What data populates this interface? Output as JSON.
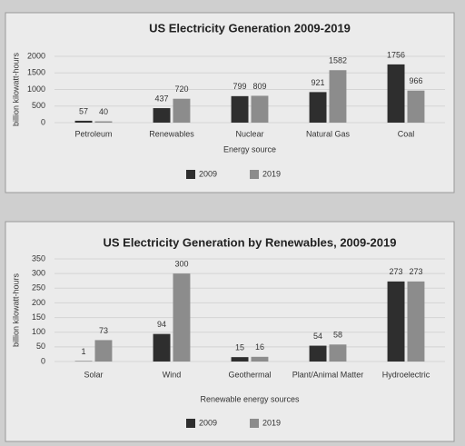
{
  "chart_data": [
    {
      "type": "bar",
      "title": "US Electricity Generation 2009-2019",
      "y_label": "billion kilowatt-hours",
      "x_label": "Energy source",
      "categories": [
        "Petroleum",
        "Renewables",
        "Nuclear",
        "Natural Gas",
        "Coal"
      ],
      "series": [
        {
          "name": "2009",
          "color": "#2e2e2e",
          "values": [
            57,
            437,
            799,
            921,
            1756
          ]
        },
        {
          "name": "2019",
          "color": "#8c8c8c",
          "values": [
            40,
            720,
            809,
            1582,
            966
          ]
        }
      ],
      "ylim": [
        0,
        2000
      ],
      "yticks": [
        0,
        500,
        1000,
        1500,
        2000
      ],
      "grid": true,
      "legend": "bottom"
    },
    {
      "type": "bar",
      "title": "US Electricity Generation by Renewables, 2009-2019",
      "y_label": "billion kilowatt-hours",
      "x_label": "Renewable energy sources",
      "categories": [
        "Solar",
        "Wind",
        "Geothermal",
        "Plant/Animal Matter",
        "Hydroelectric"
      ],
      "series": [
        {
          "name": "2009",
          "color": "#2e2e2e",
          "values": [
            1,
            94,
            15,
            54,
            273
          ]
        },
        {
          "name": "2019",
          "color": "#8c8c8c",
          "values": [
            73,
            300,
            16,
            58,
            273
          ]
        }
      ],
      "ylim": [
        0,
        350
      ],
      "yticks": [
        0,
        50,
        100,
        150,
        200,
        250,
        300,
        350
      ],
      "grid": true,
      "legend": "bottom"
    }
  ]
}
